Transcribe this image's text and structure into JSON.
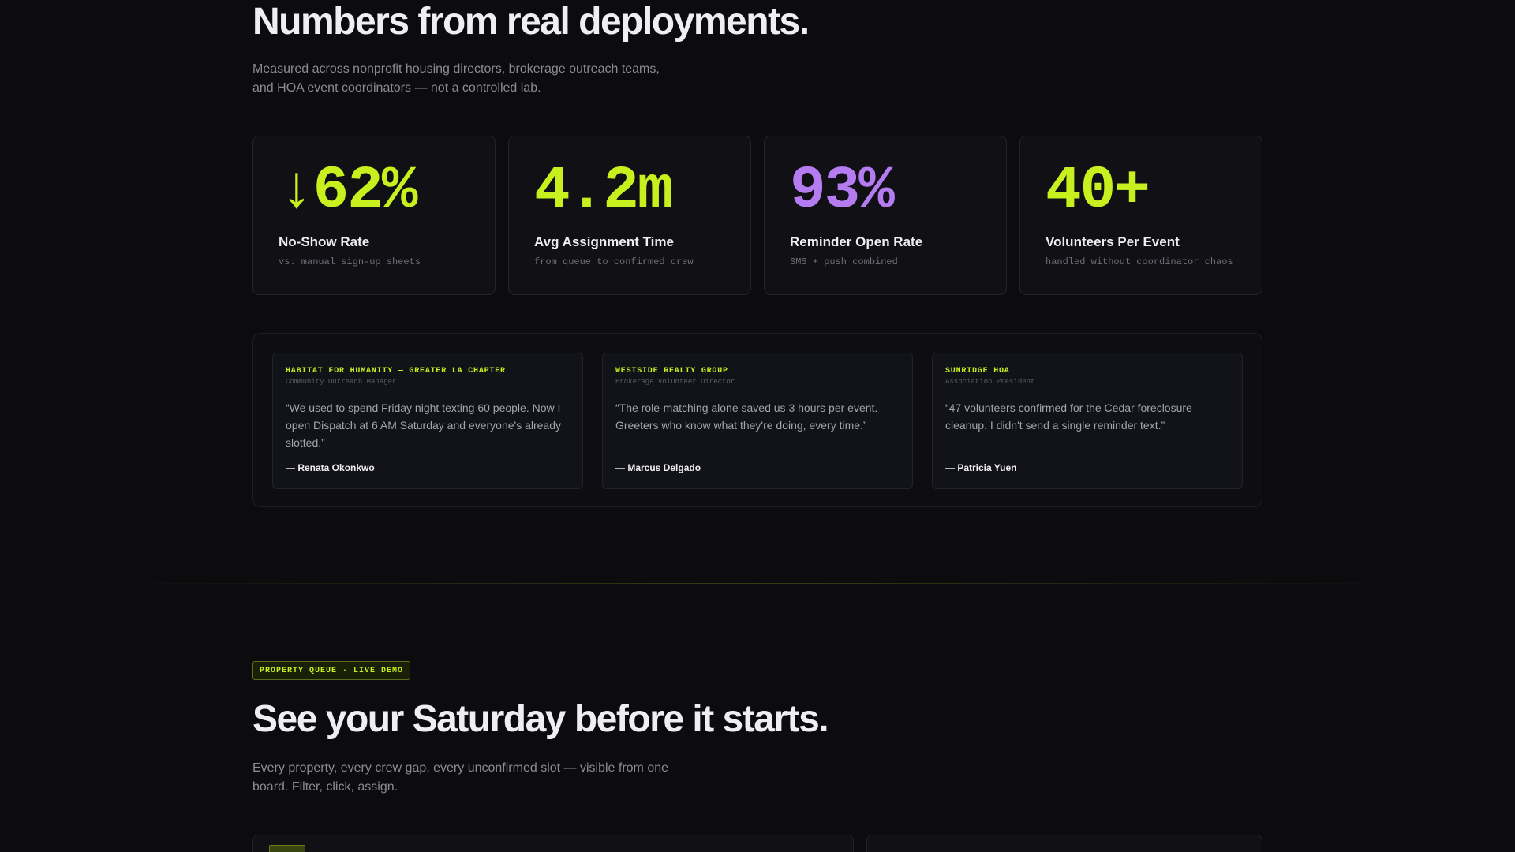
{
  "stats_section": {
    "title": "Numbers from real deployments.",
    "subtitle": "Measured across nonprofit housing directors, brokerage outreach teams, and HOA event coordinators — not a controlled lab.",
    "stats": [
      {
        "value": "↓62%",
        "label": "No-Show Rate",
        "note": "vs. manual sign-up sheets",
        "color": "#c8f01e"
      },
      {
        "value": "4.2m",
        "label": "Avg Assignment Time",
        "note": "from queue to confirmed crew",
        "color": "#c8f01e"
      },
      {
        "value": "93%",
        "label": "Reminder Open Rate",
        "note": "SMS + push combined",
        "color": "#b57cf2"
      },
      {
        "value": "40+",
        "label": "Volunteers Per Event",
        "note": "handled without coordinator chaos",
        "color": "#c8f01e"
      }
    ]
  },
  "testimonials": [
    {
      "org": "HABITAT FOR HUMANITY — GREATER LA CHAPTER",
      "role": "Community Outreach Manager",
      "quote": "“We used to spend Friday night texting 60 people. Now I open Dispatch at 6 AM Saturday and everyone's already slotted.”",
      "author": "— Renata Okonkwo"
    },
    {
      "org": "WESTSIDE REALTY GROUP",
      "role": "Brokerage Volunteer Director",
      "quote": "“The role-matching alone saved us 3 hours per event. Greeters who know what they're doing, every time.”",
      "author": "— Marcus Delgado"
    },
    {
      "org": "SUNRIDGE HOA",
      "role": "Association President",
      "quote": "“47 volunteers confirmed for the Cedar foreclosure cleanup. I didn't send a single reminder text.”",
      "author": "— Patricia Yuen"
    }
  ],
  "demo_section": {
    "badge": "PROPERTY QUEUE · LIVE DEMO",
    "title": "See your Saturday before it starts.",
    "subtitle": "Every property, every crew gap, every unconfirmed slot — visible from one board. Filter, click, assign."
  },
  "colors": {
    "accent": "#c8f01e",
    "accent_purple": "#b57cf2",
    "background": "#0c0c0f"
  }
}
